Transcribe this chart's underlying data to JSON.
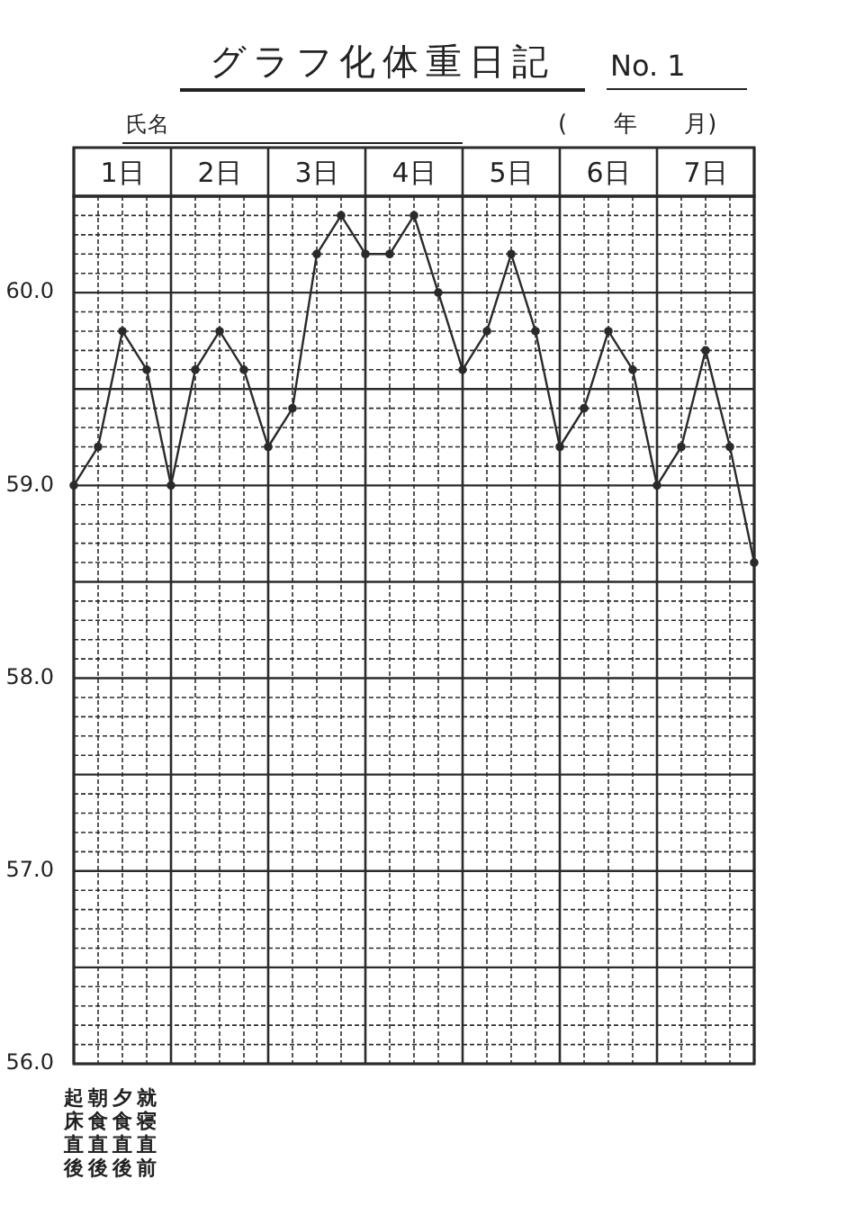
{
  "chart_data": {
    "type": "line",
    "title": "グラフ化体重日記",
    "annotations": [
      "No. 1",
      "氏名",
      "(　　年　　月)"
    ],
    "categories": [
      "起床直後",
      "朝食直後",
      "夕食直後",
      "就寝直前",
      null,
      null,
      null,
      null,
      null,
      null,
      null,
      null,
      null,
      null,
      null,
      null,
      null,
      null,
      null,
      null,
      null,
      null,
      null,
      null,
      null,
      null,
      null,
      null,
      null
    ],
    "series": [
      {
        "color": "#2a2a2a",
        "values": [
          59.0,
          59.2,
          59.8,
          59.6,
          59.0,
          59.6,
          59.8,
          59.6,
          59.2,
          59.4,
          60.2,
          60.4,
          60.2,
          60.2,
          60.4,
          60.0,
          59.6,
          59.8,
          60.2,
          59.8,
          59.2,
          59.4,
          59.8,
          59.6,
          59.0,
          59.2,
          59.7,
          59.2,
          58.6
        ]
      }
    ],
    "ylim": [
      56.0,
      60.5
    ],
    "yticks": [
      {
        "value": 56,
        "label": "56.0"
      },
      {
        "value": 56.1,
        "label": null
      },
      {
        "value": 56.2,
        "label": null
      },
      {
        "value": 56.3,
        "label": null
      },
      {
        "value": 56.4,
        "label": null
      },
      {
        "value": 56.5,
        "label": null
      },
      {
        "value": 56.6,
        "label": null
      },
      {
        "value": 56.7,
        "label": null
      },
      {
        "value": 56.8,
        "label": null
      },
      {
        "value": 56.9,
        "label": null
      },
      {
        "value": 57,
        "label": "57.0"
      },
      {
        "value": 57.1,
        "label": null
      },
      {
        "value": 57.2,
        "label": null
      },
      {
        "value": 57.3,
        "label": null
      },
      {
        "value": 57.4,
        "label": null
      },
      {
        "value": 57.5,
        "label": null
      },
      {
        "value": 57.6,
        "label": null
      },
      {
        "value": 57.7,
        "label": null
      },
      {
        "value": 57.8,
        "label": null
      },
      {
        "value": 57.9,
        "label": null
      },
      {
        "value": 58,
        "label": "58.0"
      },
      {
        "value": 58.1,
        "label": null
      },
      {
        "value": 58.2,
        "label": null
      },
      {
        "value": 58.3,
        "label": null
      },
      {
        "value": 58.4,
        "label": null
      },
      {
        "value": 58.5,
        "label": null
      },
      {
        "value": 58.6,
        "label": null
      },
      {
        "value": 58.7,
        "label": null
      },
      {
        "value": 58.8,
        "label": null
      },
      {
        "value": 58.9,
        "label": null
      },
      {
        "value": 59,
        "label": "59.0"
      },
      {
        "value": 59.1,
        "label": null
      },
      {
        "value": 59.2,
        "label": null
      },
      {
        "value": 59.3,
        "label": null
      },
      {
        "value": 59.4,
        "label": null
      },
      {
        "value": 59.5,
        "label": null
      },
      {
        "value": 59.6,
        "label": null
      },
      {
        "value": 59.7,
        "label": null
      },
      {
        "value": 59.8,
        "label": null
      },
      {
        "value": 59.9,
        "label": null
      },
      {
        "value": 60,
        "label": "60.0"
      },
      {
        "value": 60.1,
        "label": null
      },
      {
        "value": 60.2,
        "label": null
      },
      {
        "value": 60.3,
        "label": null
      },
      {
        "value": 60.4,
        "label": null
      },
      {
        "value": 60.5,
        "label": null
      }
    ],
    "x2lim": [
      0,
      7
    ],
    "x2ticks": [
      {
        "value": 0,
        "label": null
      },
      {
        "value": 0.5,
        "label": "1日"
      },
      {
        "value": 1,
        "label": null
      },
      {
        "value": 1.5,
        "label": "2日"
      },
      {
        "value": 2,
        "label": null
      },
      {
        "value": 2.5,
        "label": "3日"
      },
      {
        "value": 3,
        "label": null
      },
      {
        "value": 3.5,
        "label": "4日"
      },
      {
        "value": 4,
        "label": null
      },
      {
        "value": 4.5,
        "label": "5日"
      },
      {
        "value": 5,
        "label": null
      },
      {
        "value": 5.5,
        "label": "6日"
      },
      {
        "value": 6,
        "label": null
      },
      {
        "value": 6.5,
        "label": "7日"
      },
      {
        "value": 7,
        "label": null
      }
    ],
    "grid": true,
    "marker": "circle",
    "line_style": "solid"
  }
}
